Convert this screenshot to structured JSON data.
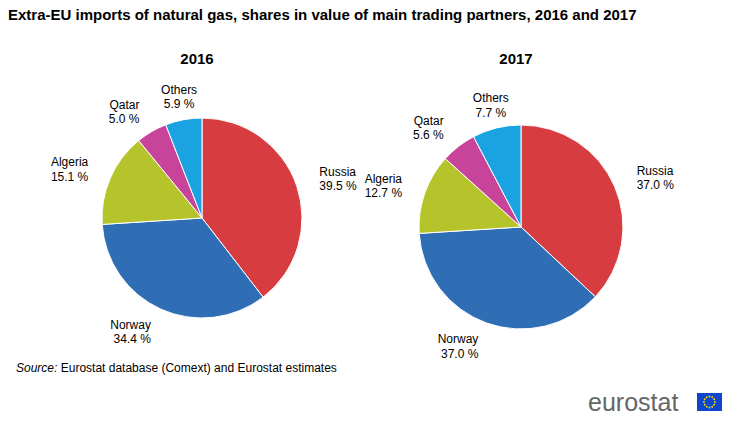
{
  "title": "Extra-EU imports of natural gas, shares in value of main trading partners, 2016 and 2017",
  "source_label": "Source:",
  "source": "Eurostat database (Comext) and Eurostat estimates",
  "logo": "eurostat",
  "chart_data": [
    {
      "type": "pie",
      "title": "2016",
      "categories": [
        "Russia",
        "Norway",
        "Algeria",
        "Qatar",
        "Others"
      ],
      "values": [
        39.5,
        34.4,
        15.1,
        5.0,
        5.9
      ],
      "value_labels": [
        "39.5 %",
        "34.4 %",
        "15.1 %",
        "5.0 %",
        "5.9 %"
      ],
      "colors": [
        "#d73c41",
        "#2f6db5",
        "#b5c42a",
        "#c8449a",
        "#1aa3e0"
      ],
      "data_labels": true
    },
    {
      "type": "pie",
      "title": "2017",
      "categories": [
        "Russia",
        "Norway",
        "Algeria",
        "Qatar",
        "Others"
      ],
      "values": [
        37.0,
        37.0,
        12.7,
        5.6,
        7.7
      ],
      "value_labels": [
        "37.0 %",
        "37.0 %",
        "12.7 %",
        "5.6 %",
        "7.7 %"
      ],
      "colors": [
        "#d73c41",
        "#2f6db5",
        "#b5c42a",
        "#c8449a",
        "#1aa3e0"
      ],
      "data_labels": true
    }
  ]
}
